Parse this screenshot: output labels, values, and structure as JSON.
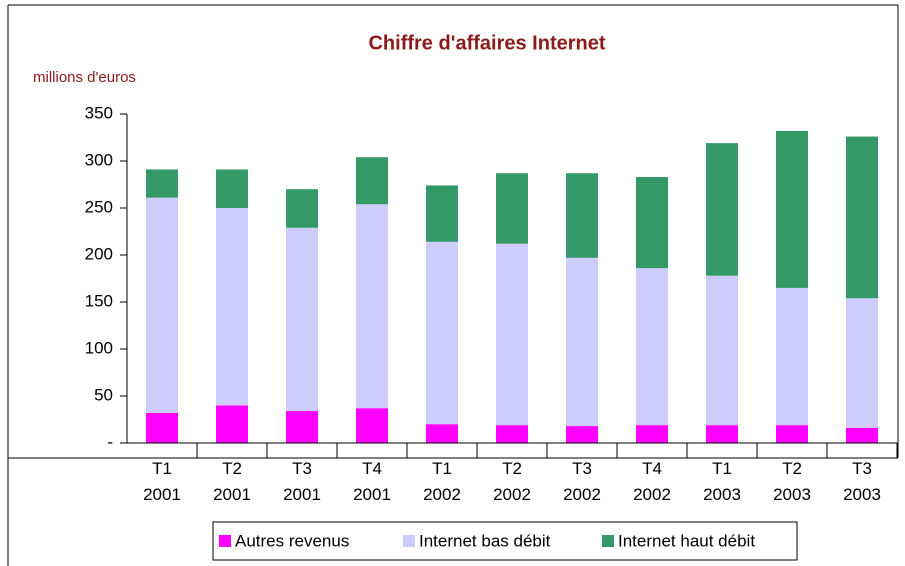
{
  "chart_data": {
    "type": "stacked_bar",
    "title": "Chiffre d'affaires Internet",
    "y_label": "millions d'euros",
    "categories": [
      "T1 2001",
      "T2 2001",
      "T3 2001",
      "T4 2001",
      "T1 2002",
      "T2 2002",
      "T3 2002",
      "T4 2002",
      "T1 2003",
      "T2 2003",
      "T3 2003"
    ],
    "series": [
      {
        "name": "Autres revenus",
        "color": "#ff00ff",
        "values": [
          32,
          40,
          34,
          37,
          20,
          19,
          18,
          19,
          19,
          19,
          16
        ]
      },
      {
        "name": "Internet bas débit",
        "color": "#ccccff",
        "values": [
          229,
          210,
          195,
          217,
          194,
          193,
          179,
          167,
          159,
          146,
          138
        ]
      },
      {
        "name": "Internet haut débit",
        "color": "#339966",
        "values": [
          30,
          41,
          41,
          50,
          60,
          75,
          90,
          97,
          141,
          167,
          172
        ]
      }
    ],
    "ylim": [
      0,
      350
    ],
    "yticks": [
      {
        "value": 0,
        "label": "-"
      },
      50,
      100,
      150,
      200,
      250,
      300,
      350
    ],
    "legend": "bottom"
  }
}
